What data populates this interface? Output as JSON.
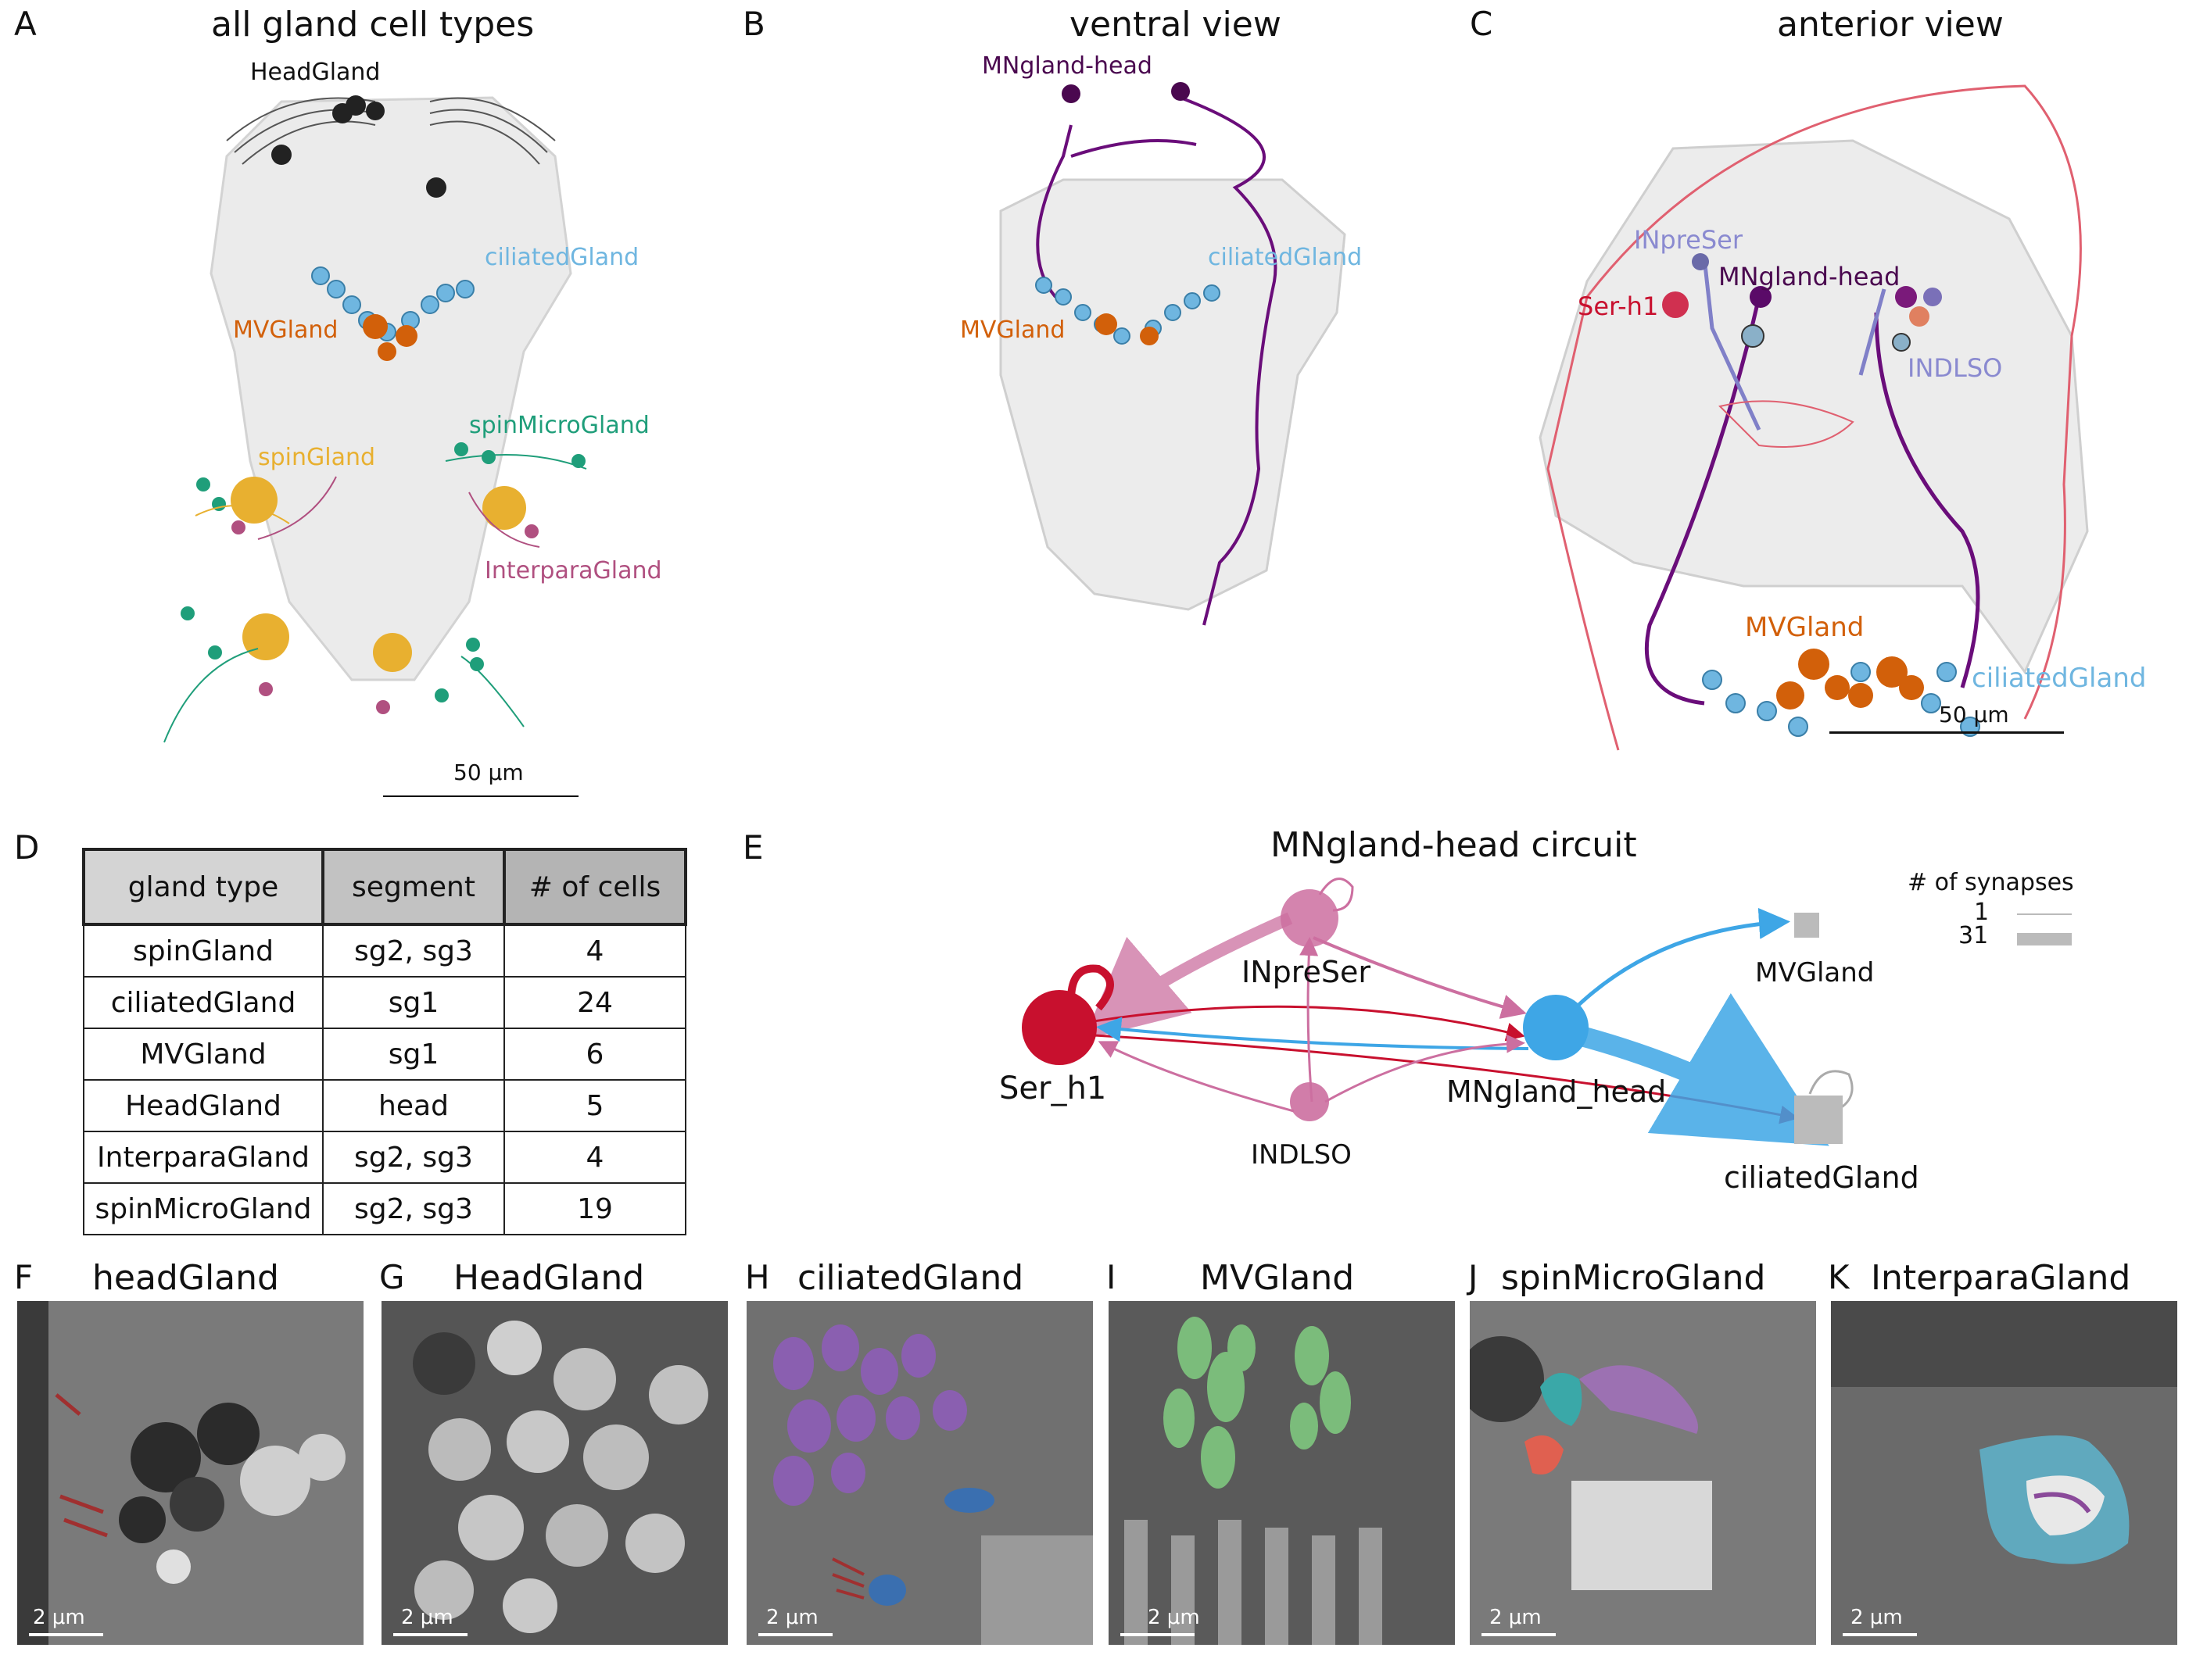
{
  "panelA": {
    "letter": "A",
    "title": "all gland cell types",
    "labels": {
      "head": "HeadGland",
      "ciliated": "ciliatedGland",
      "mv": "MVGland",
      "spinMicro": "spinMicroGland",
      "spin": "spinGland",
      "interpara": "InterparaGland"
    },
    "scale": "50 μm"
  },
  "panelB": {
    "letter": "B",
    "title": "ventral view",
    "labels": {
      "mn": "MNgland-head",
      "ciliated": "ciliatedGland",
      "mv": "MVGland"
    }
  },
  "panelC": {
    "letter": "C",
    "title": "anterior view",
    "labels": {
      "inpre": "INpreSer",
      "mn": "MNgland-head",
      "ser": "Ser-h1",
      "indlso": "INDLSO",
      "mv": "MVGland",
      "ciliated": "ciliatedGland"
    },
    "scale": "50 μm"
  },
  "panelD": {
    "letter": "D",
    "headers": [
      "gland type",
      "segment",
      "# of cells"
    ],
    "rows": [
      [
        "spinGland",
        "sg2, sg3",
        "4"
      ],
      [
        "ciliatedGland",
        "sg1",
        "24"
      ],
      [
        "MVGland",
        "sg1",
        "6"
      ],
      [
        "HeadGland",
        "head",
        "5"
      ],
      [
        "InterparaGland",
        "sg2, sg3",
        "4"
      ],
      [
        "spinMicroGland",
        "sg2, sg3",
        "19"
      ]
    ]
  },
  "panelE": {
    "letter": "E",
    "title": "MNgland-head circuit",
    "legend": {
      "title": "# of synapses",
      "min": "1",
      "max": "31"
    },
    "nodes": {
      "ser": "Ser_h1",
      "inpre": "INpreSer",
      "indlso": "INDLSO",
      "mn": "MNgland_head",
      "mv": "MVGland",
      "cil": "ciliatedGland"
    }
  },
  "em": [
    {
      "letter": "F",
      "title": "headGland",
      "scale": "2 μm"
    },
    {
      "letter": "G",
      "title": "HeadGland",
      "scale": "2 μm"
    },
    {
      "letter": "H",
      "title": "ciliatedGland",
      "scale": "2 μm"
    },
    {
      "letter": "I",
      "title": "MVGland",
      "scale": "2 μm"
    },
    {
      "letter": "J",
      "title": "spinMicroGland",
      "scale": "2 μm"
    },
    {
      "letter": "K",
      "title": "InterparaGland",
      "scale": "2 μm"
    }
  ],
  "colors": {
    "ser": "#c8102e",
    "pink": "#cc6fa0",
    "blue": "#3ea6e6",
    "grey": "#bbbbbb",
    "purple": "#6a0d7a",
    "orange": "#d2600a",
    "green": "#1f9e7a",
    "gold": "#e8b030",
    "lightblue": "#6fb6e0"
  }
}
